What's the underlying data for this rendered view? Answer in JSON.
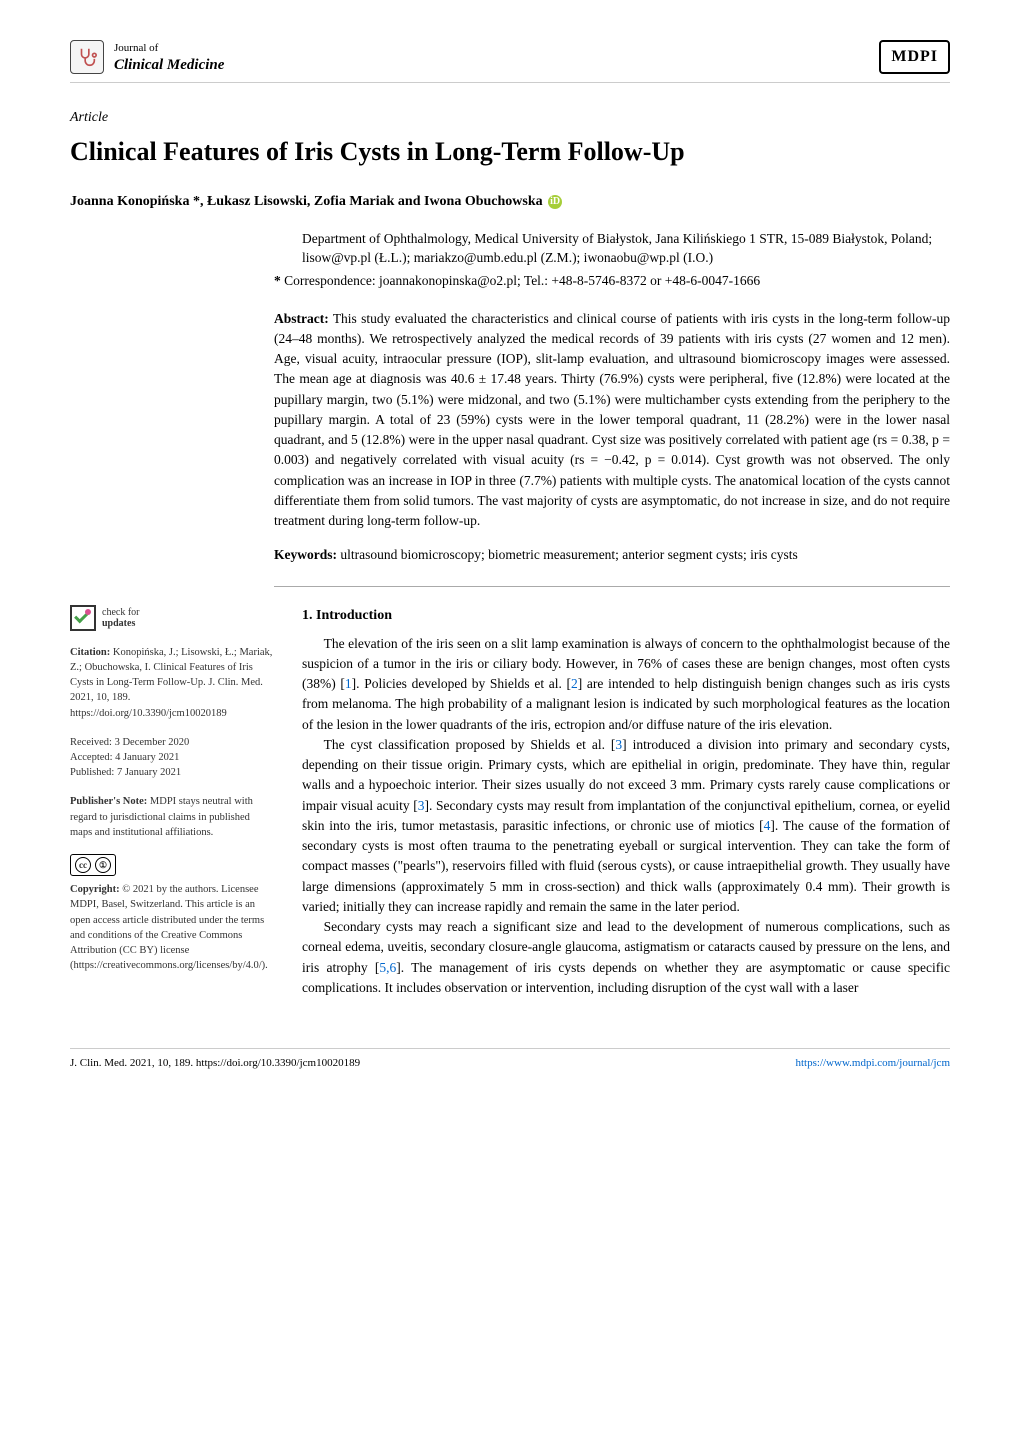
{
  "journal": {
    "subtitle": "Journal of",
    "name": "Clinical Medicine",
    "publisher_logo": "MDPI"
  },
  "article_type": "Article",
  "title": "Clinical Features of Iris Cysts in Long-Term Follow-Up",
  "authors": "Joanna Konopińska *, Łukasz Lisowski, Zofia Mariak and Iwona Obuchowska",
  "affiliation": "Department of Ophthalmology, Medical University of Białystok, Jana Kilińskiego 1 STR, 15-089 Białystok, Poland; lisow@vp.pl (Ł.L.); mariakzo@umb.edu.pl (Z.M.); iwonaobu@wp.pl (I.O.)",
  "correspondence_label": "*",
  "correspondence": "Correspondence: joannakonopinska@o2.pl; Tel.: +48-8-5746-8372 or +48-6-0047-1666",
  "abstract": {
    "label": "Abstract:",
    "text": "This study evaluated the characteristics and clinical course of patients with iris cysts in the long-term follow-up (24–48 months). We retrospectively analyzed the medical records of 39 patients with iris cysts (27 women and 12 men). Age, visual acuity, intraocular pressure (IOP), slit-lamp evaluation, and ultrasound biomicroscopy images were assessed. The mean age at diagnosis was 40.6 ± 17.48 years. Thirty (76.9%) cysts were peripheral, five (12.8%) were located at the pupillary margin, two (5.1%) were midzonal, and two (5.1%) were multichamber cysts extending from the periphery to the pupillary margin. A total of 23 (59%) cysts were in the lower temporal quadrant, 11 (28.2%) were in the lower nasal quadrant, and 5 (12.8%) were in the upper nasal quadrant. Cyst size was positively correlated with patient age (rs = 0.38, p = 0.003) and negatively correlated with visual acuity (rs = −0.42, p = 0.014). Cyst growth was not observed. The only complication was an increase in IOP in three (7.7%) patients with multiple cysts. The anatomical location of the cysts cannot differentiate them from solid tumors. The vast majority of cysts are asymptomatic, do not increase in size, and do not require treatment during long-term follow-up."
  },
  "keywords": {
    "label": "Keywords:",
    "text": "ultrasound biomicroscopy; biometric measurement; anterior segment cysts; iris cysts"
  },
  "check_updates": {
    "line1": "check for",
    "line2": "updates"
  },
  "sidebar": {
    "citation_label": "Citation:",
    "citation": "Konopińska, J.; Lisowski, Ł.; Mariak, Z.; Obuchowska, I. Clinical Features of Iris Cysts in Long-Term Follow-Up. J. Clin. Med. 2021, 10, 189. https://doi.org/10.3390/jcm10020189",
    "received": "Received: 3 December 2020",
    "accepted": "Accepted: 4 January 2021",
    "published": "Published: 7 January 2021",
    "note_label": "Publisher's Note:",
    "note": "MDPI stays neutral with regard to jurisdictional claims in published maps and institutional affiliations.",
    "copyright_label": "Copyright:",
    "copyright": "© 2021 by the authors. Licensee MDPI, Basel, Switzerland. This article is an open access article distributed under the terms and conditions of the Creative Commons Attribution (CC BY) license (https://creativecommons.org/licenses/by/4.0/)."
  },
  "section1": {
    "heading": "1. Introduction",
    "p1": "The elevation of the iris seen on a slit lamp examination is always of concern to the ophthalmologist because of the suspicion of a tumor in the iris or ciliary body. However, in 76% of cases these are benign changes, most often cysts (38%) [1]. Policies developed by Shields et al. [2] are intended to help distinguish benign changes such as iris cysts from melanoma. The high probability of a malignant lesion is indicated by such morphological features as the location of the lesion in the lower quadrants of the iris, ectropion and/or diffuse nature of the iris elevation.",
    "p2": "The cyst classification proposed by Shields et al. [3] introduced a division into primary and secondary cysts, depending on their tissue origin. Primary cysts, which are epithelial in origin, predominate. They have thin, regular walls and a hypoechoic interior. Their sizes usually do not exceed 3 mm. Primary cysts rarely cause complications or impair visual acuity [3]. Secondary cysts may result from implantation of the conjunctival epithelium, cornea, or eyelid skin into the iris, tumor metastasis, parasitic infections, or chronic use of miotics [4]. The cause of the formation of secondary cysts is most often trauma to the penetrating eyeball or surgical intervention. They can take the form of compact masses (\"pearls\"), reservoirs filled with fluid (serous cysts), or cause intraepithelial growth. They usually have large dimensions (approximately 5 mm in cross-section) and thick walls (approximately 0.4 mm). Their growth is varied; initially they can increase rapidly and remain the same in the later period.",
    "p3": "Secondary cysts may reach a significant size and lead to the development of numerous complications, such as corneal edema, uveitis, secondary closure-angle glaucoma, astigmatism or cataracts caused by pressure on the lens, and iris atrophy [5,6]. The management of iris cysts depends on whether they are asymptomatic or cause specific complications. It includes observation or intervention, including disruption of the cyst wall with a laser"
  },
  "footer": {
    "left": "J. Clin. Med. 2021, 10, 189. https://doi.org/10.3390/jcm10020189",
    "right": "https://www.mdpi.com/journal/jcm"
  },
  "colors": {
    "link": "#0066cc",
    "orcid": "#A6CE39"
  }
}
